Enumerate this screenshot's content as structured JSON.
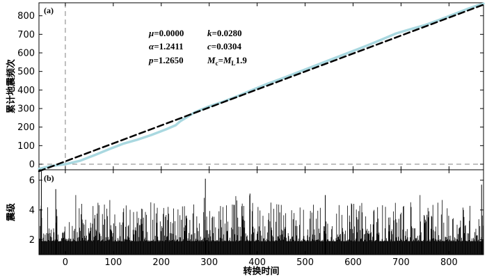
{
  "chart_data": [
    {
      "type": "line",
      "panel_label": "(a)",
      "xlabel": "",
      "ylabel": "累计地震频次",
      "xlim": [
        -55,
        872
      ],
      "ylim": [
        -30,
        870
      ],
      "xticks": [
        0,
        100,
        200,
        300,
        400,
        500,
        600,
        700,
        800
      ],
      "yticks": [
        0,
        100,
        200,
        300,
        400,
        500,
        600,
        700,
        800
      ],
      "reference_lines": {
        "vertical_x": 0,
        "horizontal_y": 0,
        "style": "dashed",
        "color": "#808080"
      },
      "series": [
        {
          "style": "solid",
          "color": "#a9d8e0",
          "x": [
            -55,
            -30,
            0,
            30,
            60,
            90,
            120,
            150,
            180,
            210,
            230,
            240,
            250,
            270,
            300,
            330,
            360,
            390,
            420,
            450,
            480,
            510,
            540,
            570,
            600,
            630,
            660,
            690,
            720,
            750,
            780,
            810,
            840,
            860,
            872
          ],
          "y": [
            -25,
            -10,
            0,
            18,
            48,
            80,
            110,
            132,
            158,
            188,
            210,
            232,
            248,
            280,
            312,
            338,
            368,
            400,
            432,
            460,
            490,
            520,
            550,
            580,
            610,
            640,
            672,
            705,
            728,
            750,
            778,
            808,
            838,
            856,
            865
          ]
        },
        {
          "style": "dashed",
          "color": "#000000",
          "x": [
            -55,
            872
          ],
          "y": [
            -38,
            860
          ]
        }
      ],
      "annotations": [
        {
          "name": "μ",
          "value": "0.0000"
        },
        {
          "name": "k",
          "value": "0.0280"
        },
        {
          "name": "α",
          "value": "1.2411"
        },
        {
          "name": "c",
          "value": "0.0304"
        },
        {
          "name": "p",
          "value": "1.2650"
        },
        {
          "name": "Mc",
          "value": "ML1.9"
        }
      ]
    },
    {
      "type": "bar",
      "panel_label": "(b)",
      "xlabel": "转换时间",
      "ylabel": "震级",
      "xlim": [
        -55,
        872
      ],
      "ylim": [
        1,
        6.7
      ],
      "xticks": [
        0,
        100,
        200,
        300,
        400,
        500,
        600,
        700,
        800
      ],
      "yticks": [
        2,
        4,
        6
      ],
      "event_count": 900,
      "prominent_events": [
        {
          "x": -50,
          "magnitude": 6.6
        },
        {
          "x": -20,
          "magnitude": 5.4
        },
        {
          "x": 292,
          "magnitude": 6.1
        },
        {
          "x": 385,
          "magnitude": 5.1
        },
        {
          "x": 542,
          "magnitude": 5.0
        },
        {
          "x": 868,
          "magnitude": 5.7
        }
      ],
      "typical_magnitude_range": [
        1.9,
        4.2
      ]
    }
  ],
  "annotations_text": {
    "mu": {
      "sym": "μ",
      "val": "=0.0000"
    },
    "k": {
      "sym": "k",
      "val": "=0.0280"
    },
    "alpha": {
      "sym": "α",
      "val": "=1.2411"
    },
    "c": {
      "sym": "c",
      "val": "=0.0304"
    },
    "p": {
      "sym": "p",
      "val": "=1.2650"
    },
    "mc": {
      "sym": "M",
      "sub": "c",
      "eq": "=",
      "sym2": "M",
      "sub2": "L",
      "val": "1.9"
    }
  }
}
